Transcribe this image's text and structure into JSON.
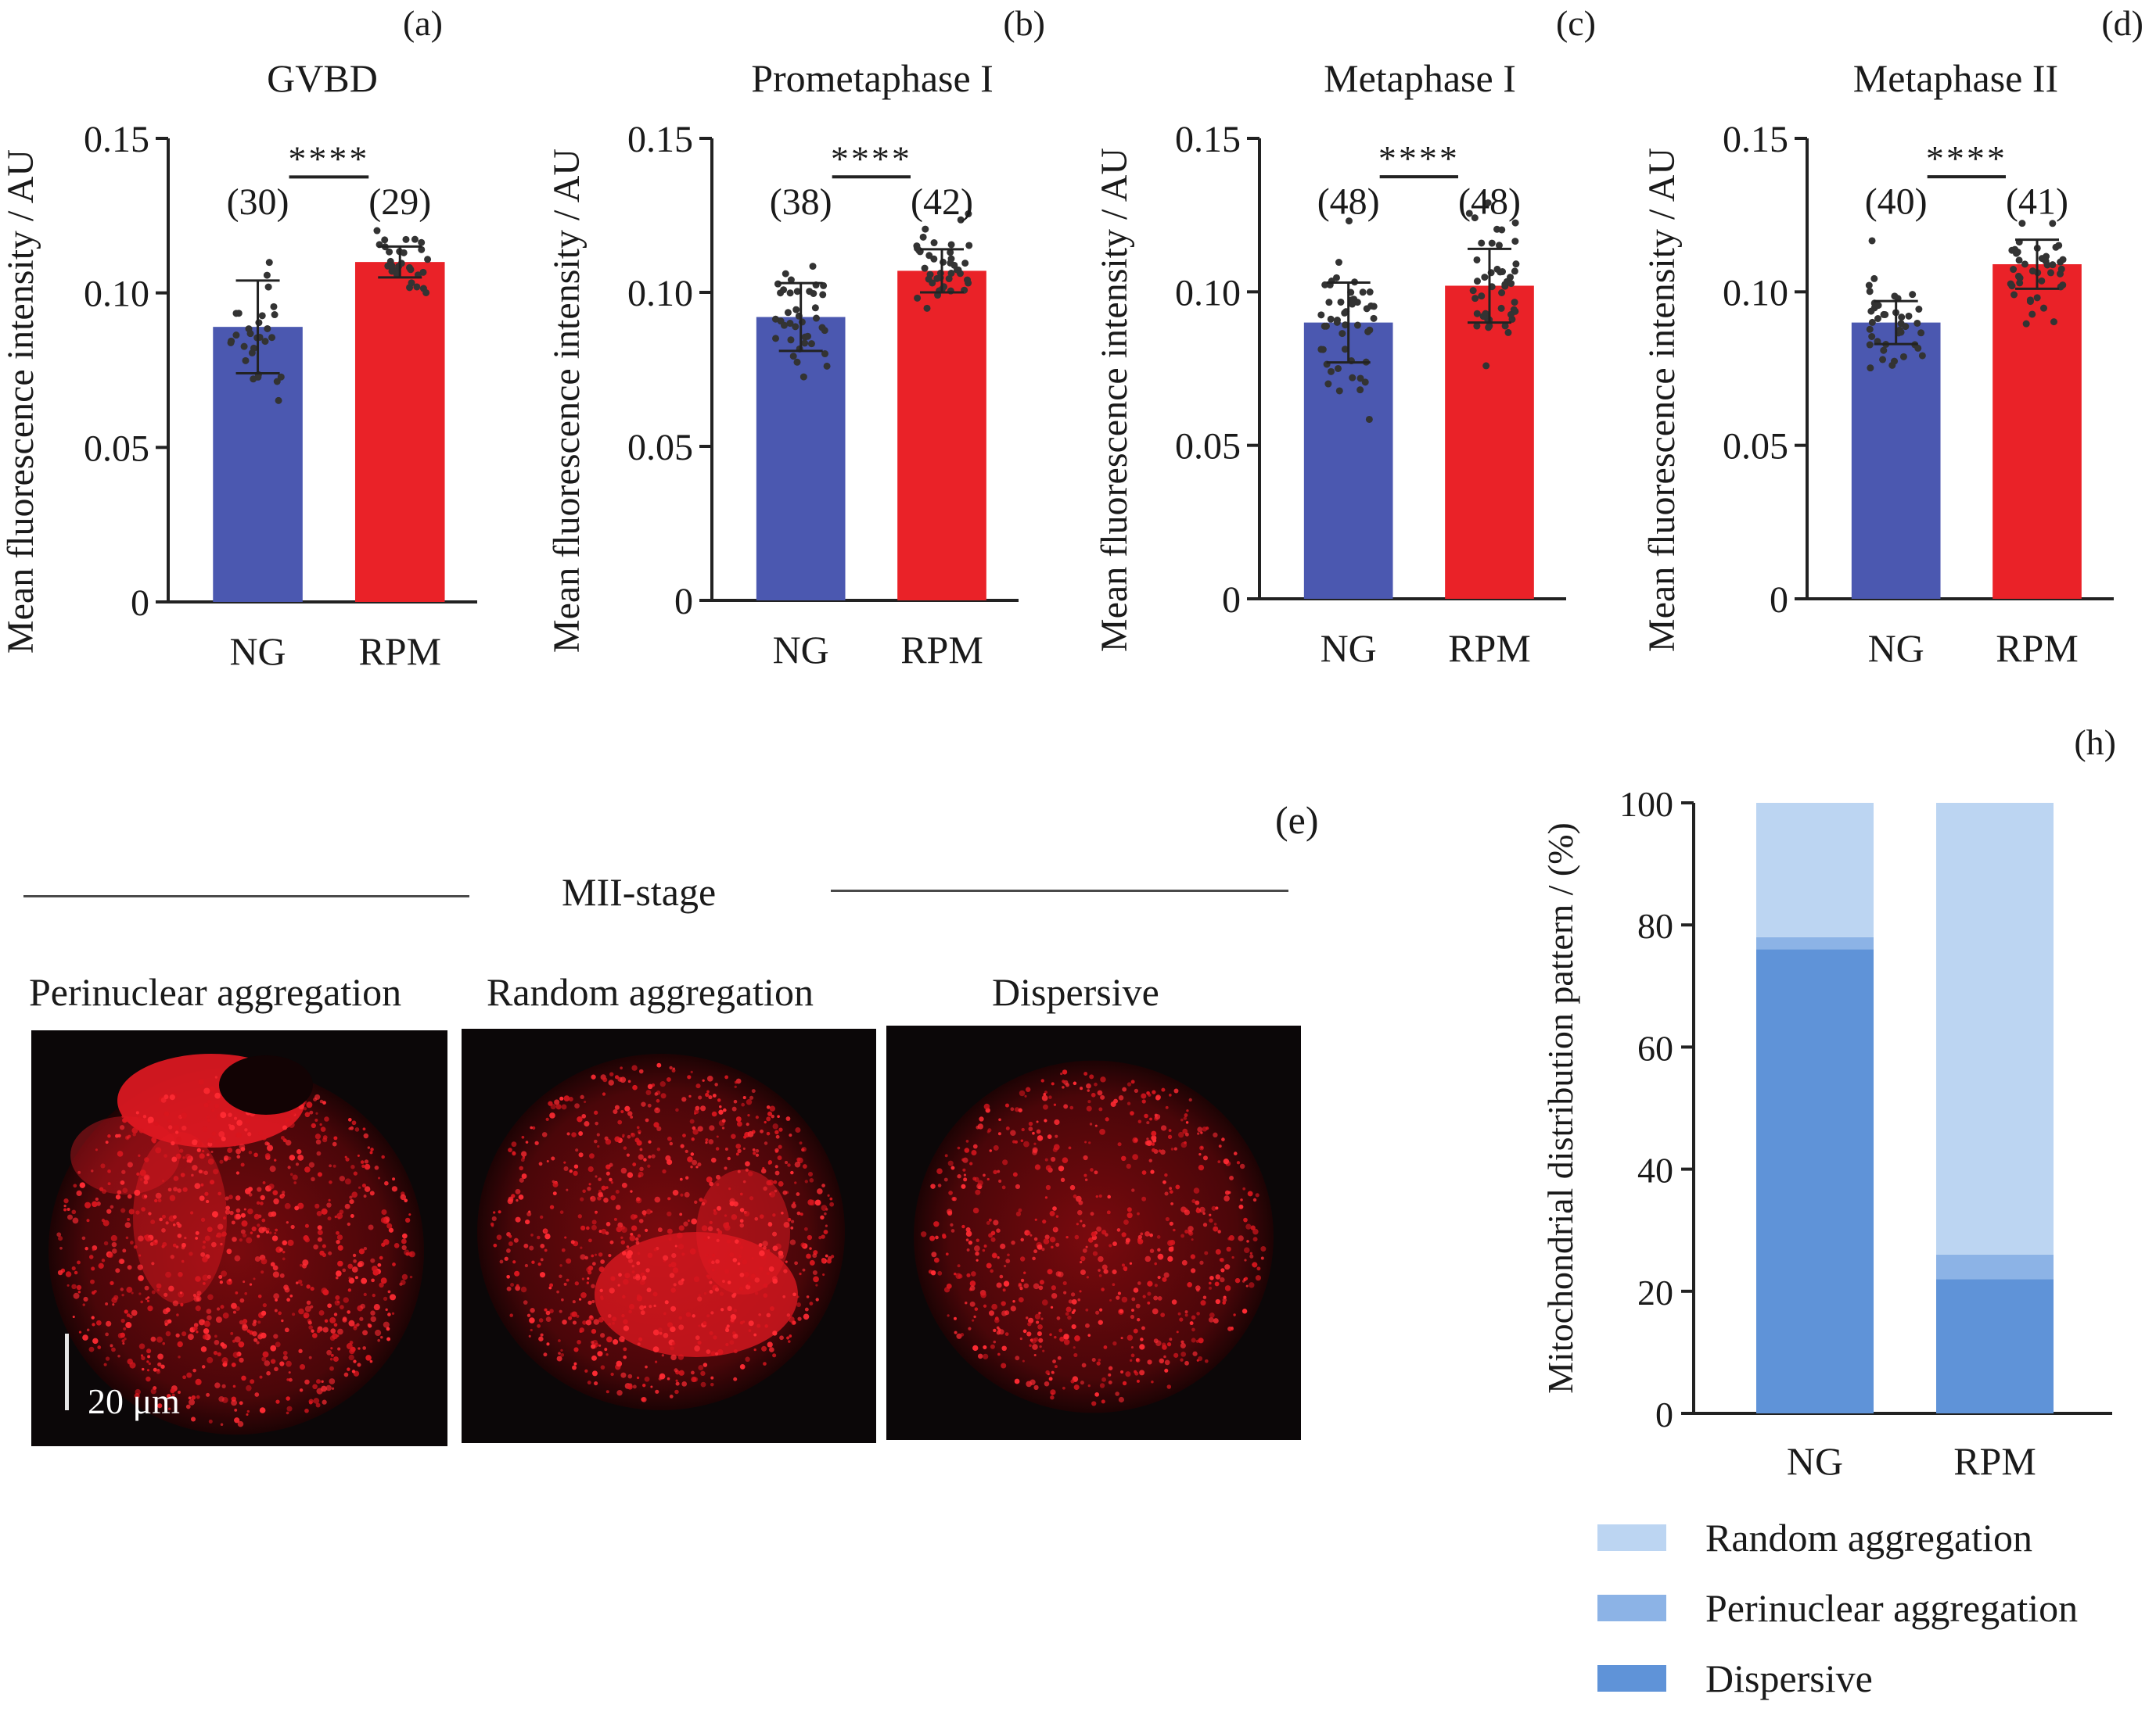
{
  "chart_data": [
    {
      "type": "bar",
      "panel_label": "(a)",
      "title": "GVBD",
      "ylabel": "Mean fluorescence intensity / AU",
      "categories": [
        "NG",
        "RPM"
      ],
      "values": [
        0.089,
        0.11
      ],
      "error_sd": [
        0.015,
        0.005
      ],
      "n_labels": [
        "(30)",
        "(29)"
      ],
      "n_points": [
        30,
        29
      ],
      "significance": "****",
      "ylim": [
        0,
        0.15
      ],
      "yticks": [
        "0",
        "0.05",
        "0.10",
        "0.15"
      ],
      "colors": [
        "#4b58b0",
        "#ea2228"
      ]
    },
    {
      "type": "bar",
      "panel_label": "(b)",
      "title": "Prometaphase I",
      "ylabel": "Mean fluorescence intensity / AU",
      "categories": [
        "NG",
        "RPM"
      ],
      "values": [
        0.092,
        0.107
      ],
      "error_sd": [
        0.011,
        0.007
      ],
      "n_labels": [
        "(38)",
        "(42)"
      ],
      "n_points": [
        38,
        42
      ],
      "significance": "****",
      "ylim": [
        0,
        0.15
      ],
      "yticks": [
        "0",
        "0.05",
        "0.10",
        "0.15"
      ],
      "colors": [
        "#4b58b0",
        "#ea2228"
      ]
    },
    {
      "type": "bar",
      "panel_label": "(c)",
      "title": "Metaphase I",
      "ylabel": "Mean fluorescence intensity / AU",
      "categories": [
        "NG",
        "RPM"
      ],
      "values": [
        0.09,
        0.102
      ],
      "error_sd": [
        0.013,
        0.012
      ],
      "n_labels": [
        "(48)",
        "(48)"
      ],
      "n_points": [
        48,
        48
      ],
      "significance": "****",
      "ylim": [
        0,
        0.15
      ],
      "yticks": [
        "0",
        "0.05",
        "0.10",
        "0.15"
      ],
      "colors": [
        "#4b58b0",
        "#ea2228"
      ]
    },
    {
      "type": "bar",
      "panel_label": "(d)",
      "title": "Metaphase II",
      "ylabel": "Mean fluorescence intensity / AU",
      "categories": [
        "NG",
        "RPM"
      ],
      "values": [
        0.09,
        0.109
      ],
      "error_sd": [
        0.007,
        0.008
      ],
      "n_labels": [
        "(40)",
        "(41)"
      ],
      "n_points": [
        40,
        41
      ],
      "significance": "****",
      "ylim": [
        0,
        0.15
      ],
      "yticks": [
        "0",
        "0.05",
        "0.10",
        "0.15"
      ],
      "colors": [
        "#4b58b0",
        "#ea2228"
      ]
    },
    {
      "type": "bar",
      "stacked": true,
      "panel_label": "(h)",
      "ylabel": "Mitochondrial distribution pattern / (%)",
      "categories": [
        "NG",
        "RPM"
      ],
      "series": [
        {
          "name": "Dispersive",
          "values": [
            76,
            22
          ],
          "color": "#5f93d8"
        },
        {
          "name": "Perinuclear aggregation",
          "values": [
            2,
            4
          ],
          "color": "#8cb3e6"
        },
        {
          "name": "Random aggregation",
          "values": [
            22,
            74
          ],
          "color": "#bcd5f2"
        }
      ],
      "legend_order": [
        "Random aggregation",
        "Perinuclear aggregation",
        "Dispersive"
      ],
      "ylim": [
        0,
        100
      ],
      "yticks": [
        "0",
        "20",
        "40",
        "60",
        "80",
        "100"
      ],
      "legend": "bottom"
    }
  ],
  "micrograph_panel": {
    "panel_label": "(e)",
    "stage_label": "MII-stage",
    "images": [
      {
        "label": "Perinuclear aggregation"
      },
      {
        "label": "Random aggregation"
      },
      {
        "label": "Dispersive"
      }
    ],
    "scale_bar": "20 μm"
  }
}
